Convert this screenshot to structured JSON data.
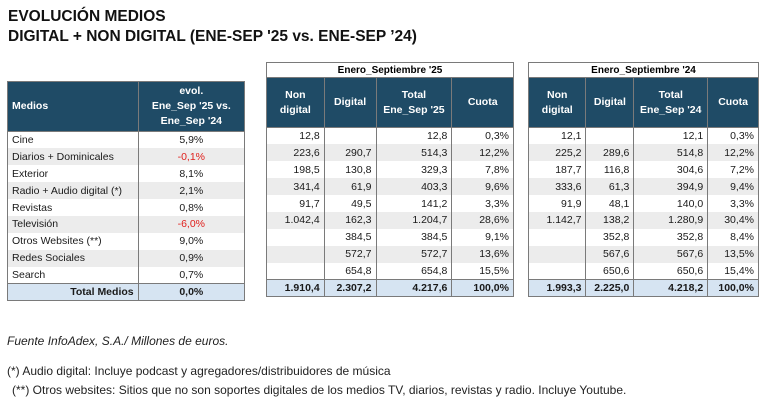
{
  "title": {
    "line1": "EVOLUCIÓN MEDIOS",
    "line2": "DIGITAL + NON DIGITAL (ENE-SEP '25 vs. ENE-SEP ’24)"
  },
  "left_table": {
    "header_medios": "Medios",
    "header_evol": [
      "evol.",
      "Ene_Sep '25 vs.",
      "Ene_Sep '24"
    ],
    "rows": [
      {
        "medio": "Cine",
        "evol": "5,9%",
        "negative": false
      },
      {
        "medio": "Diarios + Dominicales",
        "evol": "-0,1%",
        "negative": true
      },
      {
        "medio": "Exterior",
        "evol": "8,1%",
        "negative": false
      },
      {
        "medio": "Radio + Audio digital (*)",
        "evol": "2,1%",
        "negative": false
      },
      {
        "medio": "Revistas",
        "evol": "0,8%",
        "negative": false
      },
      {
        "medio": "Televisión",
        "evol": "-6,0%",
        "negative": true
      },
      {
        "medio": "Otros Websites (**)",
        "evol": "9,0%",
        "negative": false
      },
      {
        "medio": "Redes Sociales",
        "evol": "0,9%",
        "negative": false
      },
      {
        "medio": "Search",
        "evol": "0,7%",
        "negative": false
      }
    ],
    "total": {
      "medio": "Total Medios",
      "evol": "0,0%"
    }
  },
  "t25": {
    "super_header": "Enero_Septiembre '25",
    "headers": {
      "non_digital": [
        "Non",
        "digital"
      ],
      "digital": "Digital",
      "total": [
        "Total",
        "Ene_Sep '25"
      ],
      "cuota": "Cuota"
    },
    "rows": [
      {
        "non_digital": "12,8",
        "digital": "",
        "total": "12,8",
        "cuota": "0,3%"
      },
      {
        "non_digital": "223,6",
        "digital": "290,7",
        "total": "514,3",
        "cuota": "12,2%"
      },
      {
        "non_digital": "198,5",
        "digital": "130,8",
        "total": "329,3",
        "cuota": "7,8%"
      },
      {
        "non_digital": "341,4",
        "digital": "61,9",
        "total": "403,3",
        "cuota": "9,6%"
      },
      {
        "non_digital": "91,7",
        "digital": "49,5",
        "total": "141,2",
        "cuota": "3,3%"
      },
      {
        "non_digital": "1.042,4",
        "digital": "162,3",
        "total": "1.204,7",
        "cuota": "28,6%"
      },
      {
        "non_digital": "",
        "digital": "384,5",
        "total": "384,5",
        "cuota": "9,1%"
      },
      {
        "non_digital": "",
        "digital": "572,7",
        "total": "572,7",
        "cuota": "13,6%"
      },
      {
        "non_digital": "",
        "digital": "654,8",
        "total": "654,8",
        "cuota": "15,5%"
      }
    ],
    "total": {
      "non_digital": "1.910,4",
      "digital": "2.307,2",
      "total": "4.217,6",
      "cuota": "100,0%"
    }
  },
  "t24": {
    "super_header": "Enero_Septiembre '24",
    "headers": {
      "non_digital": [
        "Non",
        "digital"
      ],
      "digital": "Digital",
      "total": [
        "Total",
        "Ene_Sep '24"
      ],
      "cuota": "Cuota"
    },
    "rows": [
      {
        "non_digital": "12,1",
        "digital": "",
        "total": "12,1",
        "cuota": "0,3%"
      },
      {
        "non_digital": "225,2",
        "digital": "289,6",
        "total": "514,8",
        "cuota": "12,2%"
      },
      {
        "non_digital": "187,7",
        "digital": "116,8",
        "total": "304,6",
        "cuota": "7,2%"
      },
      {
        "non_digital": "333,6",
        "digital": "61,3",
        "total": "394,9",
        "cuota": "9,4%"
      },
      {
        "non_digital": "91,9",
        "digital": "48,1",
        "total": "140,0",
        "cuota": "3,3%"
      },
      {
        "non_digital": "1.142,7",
        "digital": "138,2",
        "total": "1.280,9",
        "cuota": "30,4%"
      },
      {
        "non_digital": "",
        "digital": "352,8",
        "total": "352,8",
        "cuota": "8,4%"
      },
      {
        "non_digital": "",
        "digital": "567,6",
        "total": "567,6",
        "cuota": "13,5%"
      },
      {
        "non_digital": "",
        "digital": "650,6",
        "total": "650,6",
        "cuota": "15,4%"
      }
    ],
    "total": {
      "non_digital": "1.993,3",
      "digital": "2.225,0",
      "total": "4.218,2",
      "cuota": "100,0%"
    }
  },
  "notes": {
    "source": "Fuente InfoAdex, S.A./ Millones de euros.",
    "note1": "(*) Audio digital: Incluye podcast y agregadores/distribuidores de música",
    "note2": "(**) Otros websites: Sitios que no son soportes digitales de los medios TV, diarios, revistas y radio. Incluye Youtube."
  },
  "colors": {
    "header_bg": "#1f4b66",
    "shade_bg": "#ececec",
    "total_bg": "#d6e4f2",
    "negative": "#e0201c"
  }
}
